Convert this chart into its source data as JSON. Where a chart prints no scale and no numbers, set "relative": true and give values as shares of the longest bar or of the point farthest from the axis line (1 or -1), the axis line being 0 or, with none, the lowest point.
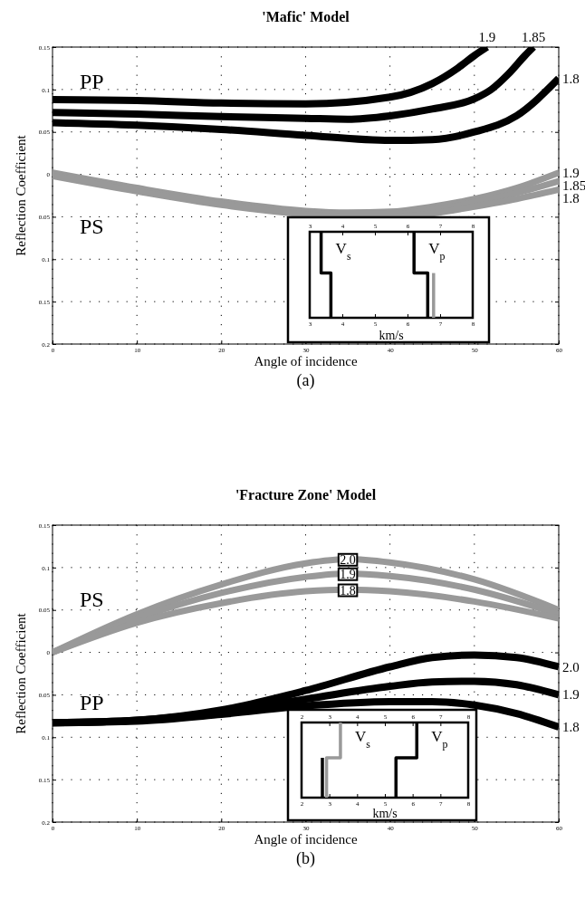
{
  "chart_data": [
    {
      "type": "line",
      "title": "'Mafic' Model",
      "xlabel": "Angle of incidence",
      "ylabel": "Reflection Coefficient",
      "xlim": [
        0,
        60
      ],
      "xticks": [
        0,
        10,
        20,
        30,
        40,
        50,
        60
      ],
      "ylim": [
        -0.2,
        0.15
      ],
      "yticks": [
        {
          "value": -0.2,
          "label": "0.2"
        },
        {
          "value": -0.15,
          "label": "0.15"
        },
        {
          "value": -0.1,
          "label": "0.1"
        },
        {
          "value": -0.05,
          "label": "0.05"
        },
        0,
        0.05,
        0.1,
        0.15
      ],
      "grid": true,
      "annotations": [
        "PP",
        "PS",
        "(a)"
      ],
      "series": [
        {
          "name": "1.9",
          "color": "#000000",
          "x": [
            0,
            10,
            20,
            30,
            40,
            45,
            48,
            50,
            51.5
          ],
          "values": [
            0.088,
            0.087,
            0.084,
            0.083,
            0.091,
            0.107,
            0.125,
            0.14,
            0.15
          ]
        },
        {
          "name": "1.85",
          "color": "#000000",
          "x": [
            0,
            10,
            20,
            30,
            35,
            40,
            45,
            50,
            52,
            54,
            56,
            57
          ],
          "values": [
            0.073,
            0.071,
            0.068,
            0.066,
            0.065,
            0.069,
            0.077,
            0.089,
            0.1,
            0.118,
            0.14,
            0.15
          ]
        },
        {
          "name": "1.8",
          "color": "#000000",
          "x": [
            0,
            10,
            20,
            30,
            40,
            45,
            50,
            55,
            60
          ],
          "values": [
            0.061,
            0.058,
            0.053,
            0.046,
            0.04,
            0.041,
            0.05,
            0.069,
            0.113
          ]
        },
        {
          "name": "1.9",
          "color": "#999999",
          "x": [
            0,
            10,
            20,
            30,
            35,
            40,
            45,
            50,
            55,
            60
          ],
          "values": [
            0.002,
            -0.016,
            -0.032,
            -0.043,
            -0.045,
            -0.044,
            -0.038,
            -0.029,
            -0.016,
            0.002
          ]
        },
        {
          "name": "1.85",
          "color": "#999999",
          "x": [
            0,
            10,
            20,
            30,
            35,
            40,
            45,
            50,
            55,
            60
          ],
          "values": [
            0,
            -0.018,
            -0.034,
            -0.045,
            -0.047,
            -0.047,
            -0.042,
            -0.033,
            -0.022,
            -0.008
          ]
        },
        {
          "name": "1.8",
          "color": "#999999",
          "x": [
            0,
            10,
            20,
            30,
            35,
            40,
            45,
            50,
            55,
            60
          ],
          "values": [
            -0.002,
            -0.02,
            -0.036,
            -0.047,
            -0.05,
            -0.05,
            -0.046,
            -0.038,
            -0.029,
            -0.018
          ]
        }
      ]
    },
    {
      "type": "line",
      "xlabel": "km/s",
      "xlim": [
        3,
        8
      ],
      "xticks": [
        3,
        4,
        5,
        6,
        7,
        8
      ],
      "x2lim": [
        3,
        8
      ],
      "x2ticks": [
        3,
        4,
        5,
        6,
        7,
        8
      ],
      "relative": true,
      "tick_labels": "x",
      "series": [
        {
          "name": "V$_{s}$",
          "color": "#000000",
          "x": [
            3.35,
            3.35,
            3.65,
            3.65
          ],
          "values": [
            1,
            0.52,
            0.52,
            0
          ]
        },
        {
          "name": "V$_{p}$",
          "color": "#000000",
          "x": [
            6.2,
            6.2,
            6.62,
            6.62
          ],
          "values": [
            1,
            0.52,
            0.52,
            0
          ]
        },
        {
          "color": "#999999",
          "x": [
            6.8,
            6.8
          ],
          "values": [
            0.52,
            0
          ]
        }
      ]
    },
    {
      "type": "line",
      "title": "'Fracture Zone' Model",
      "xlabel": "Angle of incidence",
      "ylabel": "Reflection Coefficient",
      "xlim": [
        0,
        60
      ],
      "xticks": [
        0,
        10,
        20,
        30,
        40,
        50,
        60
      ],
      "ylim": [
        -0.2,
        0.15
      ],
      "yticks": [
        {
          "value": -0.2,
          "label": "0.2"
        },
        {
          "value": -0.15,
          "label": "0.15"
        },
        {
          "value": -0.1,
          "label": "0.1"
        },
        {
          "value": -0.05,
          "label": "0.05"
        },
        0,
        0.05,
        0.1,
        0.15
      ],
      "grid": true,
      "annotations": [
        "PS",
        "PP",
        "(b)"
      ],
      "series": [
        {
          "name": "2.0",
          "color": "#000000",
          "x": [
            0,
            10,
            20,
            30,
            40,
            45,
            50,
            55,
            60
          ],
          "values": [
            -0.083,
            -0.08,
            -0.068,
            -0.045,
            -0.017,
            -0.006,
            -0.003,
            -0.006,
            -0.017
          ]
        },
        {
          "name": "1.9",
          "color": "#000000",
          "x": [
            0,
            10,
            20,
            30,
            40,
            45,
            50,
            55,
            60
          ],
          "values": [
            -0.083,
            -0.08,
            -0.07,
            -0.055,
            -0.04,
            -0.035,
            -0.034,
            -0.038,
            -0.05
          ]
        },
        {
          "name": "1.8",
          "color": "#000000",
          "x": [
            0,
            10,
            20,
            30,
            40,
            45,
            50,
            55,
            60
          ],
          "values": [
            -0.083,
            -0.081,
            -0.073,
            -0.063,
            -0.058,
            -0.058,
            -0.062,
            -0.072,
            -0.088
          ]
        },
        {
          "name": "2.0",
          "color": "#999999",
          "x": [
            0,
            10,
            20,
            30,
            35,
            40,
            50,
            60
          ],
          "values": [
            0,
            0.045,
            0.08,
            0.105,
            0.11,
            0.106,
            0.086,
            0.05
          ]
        },
        {
          "name": "1.9",
          "color": "#999999",
          "x": [
            0,
            10,
            20,
            30,
            35,
            40,
            50,
            60
          ],
          "values": [
            0,
            0.04,
            0.07,
            0.089,
            0.093,
            0.09,
            0.074,
            0.045
          ]
        },
        {
          "name": "1.8",
          "color": "#999999",
          "x": [
            0,
            10,
            20,
            30,
            35,
            40,
            50,
            60
          ],
          "values": [
            0,
            0.035,
            0.058,
            0.072,
            0.074,
            0.072,
            0.06,
            0.04
          ]
        }
      ]
    },
    {
      "type": "line",
      "xlabel": "km/s",
      "xlim": [
        2,
        8
      ],
      "xticks": [
        2,
        3,
        4,
        5,
        6,
        7,
        8
      ],
      "x2lim": [
        2,
        8
      ],
      "x2ticks": [
        2,
        3,
        4,
        5,
        6,
        7,
        8
      ],
      "relative": true,
      "tick_labels": "x",
      "series": [
        {
          "name": "V$_{s}$",
          "color": "#999999",
          "x": [
            3.4,
            3.4,
            2.9,
            2.9
          ],
          "values": [
            1,
            0.53,
            0.53,
            0
          ]
        },
        {
          "name": "V$_{p}$",
          "color": "#000000",
          "x": [
            6.15,
            6.15,
            5.4,
            5.4
          ],
          "values": [
            1,
            0.53,
            0.53,
            0
          ]
        },
        {
          "color": "#000000",
          "x": [
            2.75,
            2.75
          ],
          "values": [
            0.53,
            0
          ]
        }
      ]
    }
  ]
}
